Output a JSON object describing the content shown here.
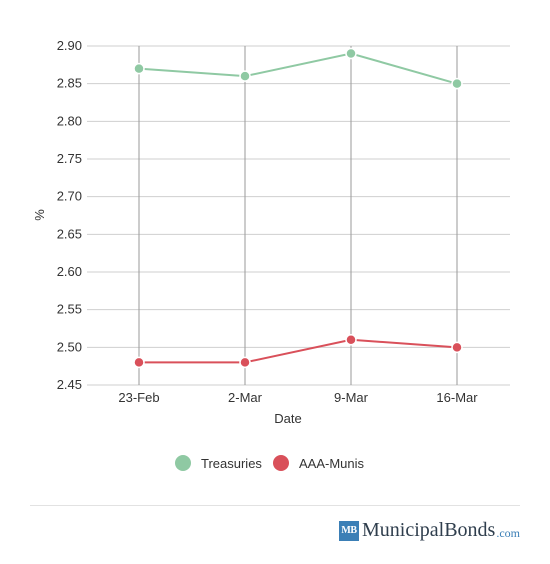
{
  "chart_data": {
    "type": "line",
    "categories": [
      "23-Feb",
      "2-Mar",
      "9-Mar",
      "16-Mar"
    ],
    "series": [
      {
        "name": "Treasuries",
        "values": [
          2.87,
          2.86,
          2.89,
          2.85
        ],
        "color": "#8fc9a3"
      },
      {
        "name": "AAA-Munis",
        "values": [
          2.48,
          2.48,
          2.51,
          2.5
        ],
        "color": "#d9505a"
      }
    ],
    "xlabel": "Date",
    "ylabel": "%",
    "ylim": [
      2.45,
      2.9
    ],
    "yticks": [
      "2.90",
      "2.85",
      "2.80",
      "2.75",
      "2.70",
      "2.65",
      "2.60",
      "2.55",
      "2.50",
      "2.45"
    ],
    "grid": true,
    "legend_position": "bottom"
  },
  "brand": {
    "logo_text": "MB",
    "name": "MunicipalBonds",
    "tld": ".com"
  }
}
